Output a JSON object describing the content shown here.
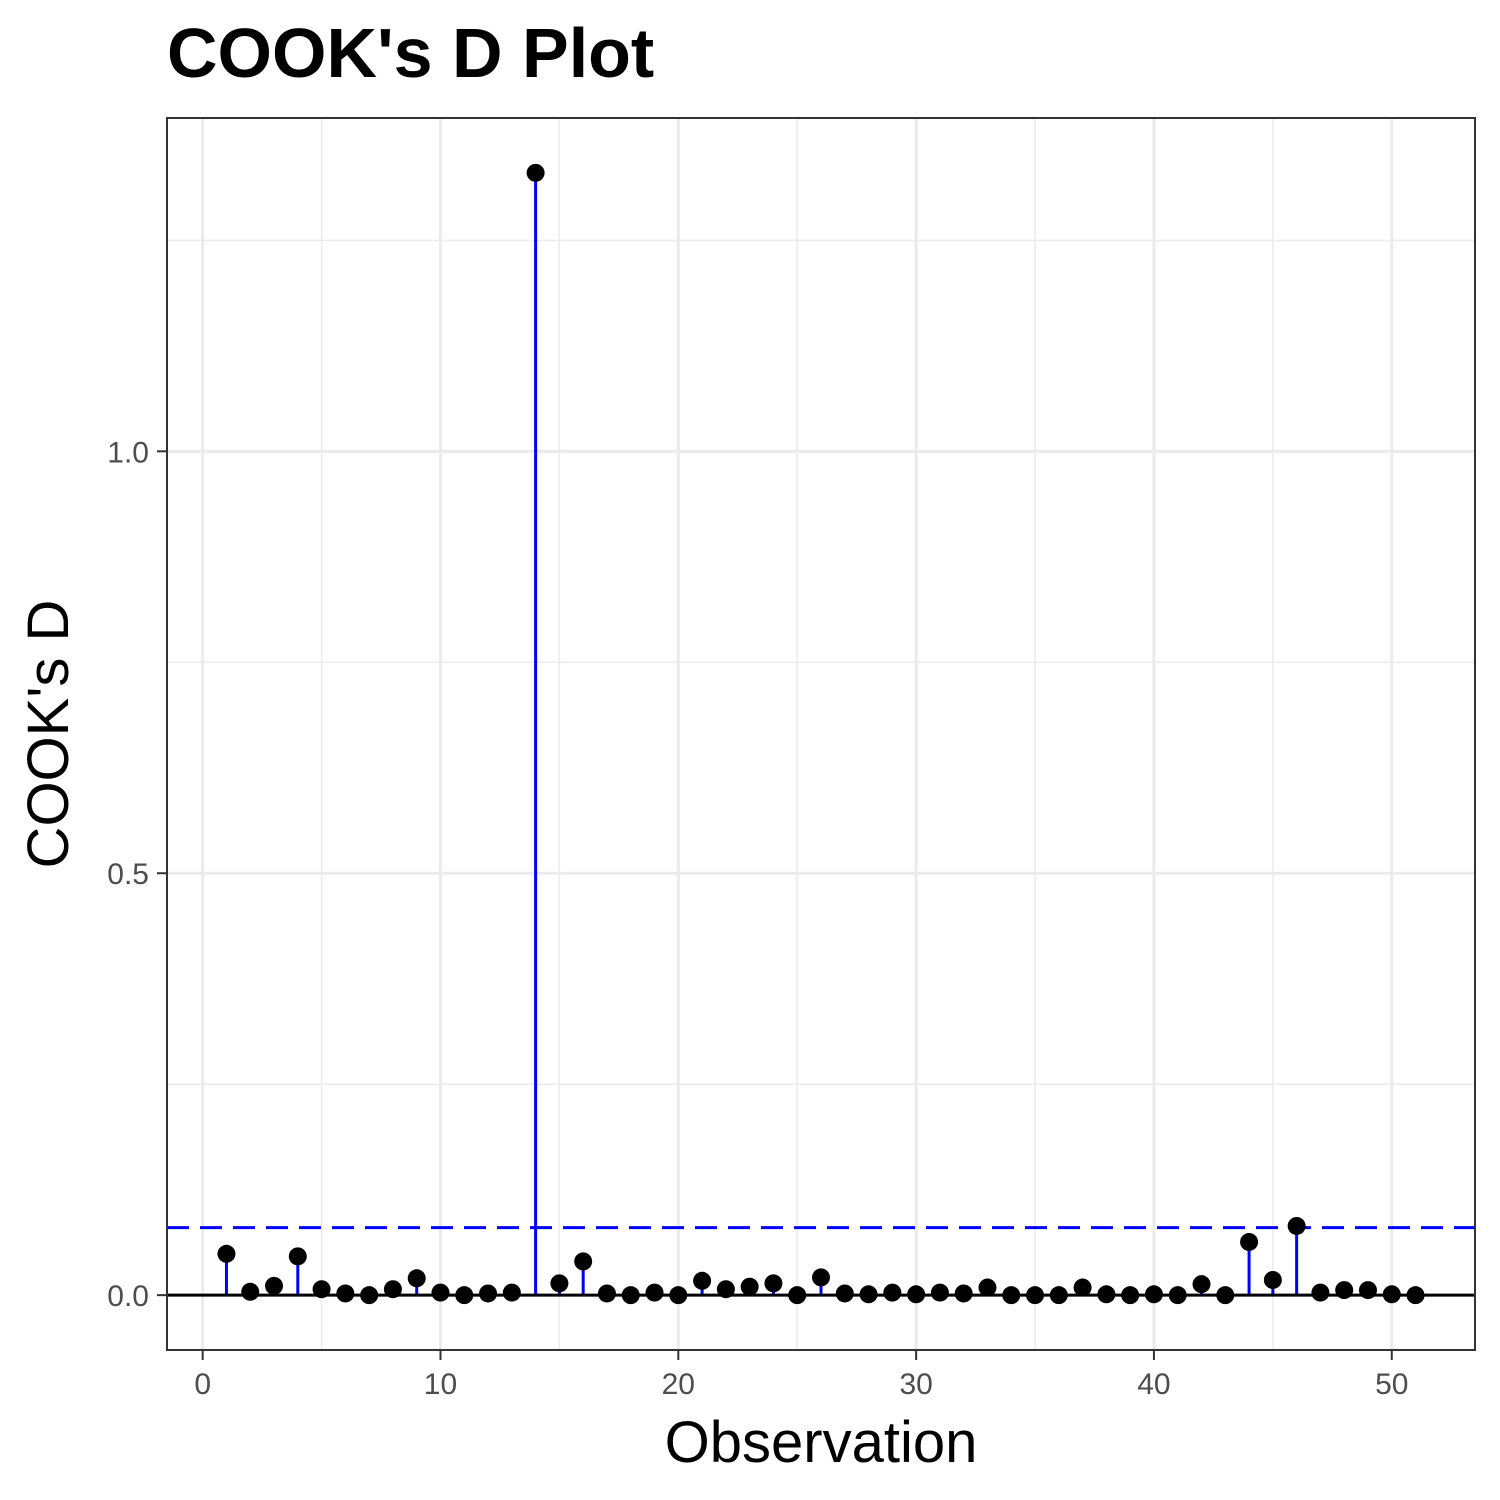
{
  "chart_data": {
    "type": "scatter",
    "title": "COOK's D Plot",
    "xlabel": "Observation",
    "ylabel": "COOK's D",
    "xlim": [
      -1.5,
      53.5
    ],
    "ylim": [
      -0.065,
      1.395
    ],
    "x_ticks": [
      0,
      10,
      20,
      30,
      40,
      50
    ],
    "x_tick_labels": [
      "0",
      "10",
      "20",
      "30",
      "40",
      "50"
    ],
    "y_ticks": [
      0.0,
      0.5,
      1.0
    ],
    "y_tick_labels": [
      "0.0",
      "0.5",
      "1.0"
    ],
    "y_minor_ticks": [
      0.25,
      0.75,
      1.25
    ],
    "threshold": 0.08,
    "grid": true,
    "colors": {
      "stem": "#0000ff",
      "point": "#000000",
      "threshold": "#0000ff",
      "baseline": "#000000",
      "grid": "#ebebeb",
      "panel_border": "#333333"
    },
    "x": [
      1,
      2,
      3,
      4,
      5,
      6,
      7,
      8,
      9,
      10,
      11,
      12,
      13,
      14,
      15,
      16,
      17,
      18,
      19,
      20,
      21,
      22,
      23,
      24,
      25,
      26,
      27,
      28,
      29,
      30,
      31,
      32,
      33,
      34,
      35,
      36,
      37,
      38,
      39,
      40,
      41,
      42,
      43,
      44,
      45,
      46,
      47,
      48,
      49,
      50,
      51
    ],
    "y": [
      0.049,
      0.004,
      0.011,
      0.046,
      0.007,
      0.002,
      0.0,
      0.007,
      0.02,
      0.003,
      0.0,
      0.002,
      0.003,
      1.33,
      0.014,
      0.04,
      0.002,
      0.0,
      0.003,
      0.0,
      0.017,
      0.007,
      0.01,
      0.014,
      0.0,
      0.021,
      0.002,
      0.001,
      0.003,
      0.001,
      0.003,
      0.002,
      0.009,
      0.0,
      0.0,
      0.0,
      0.009,
      0.001,
      0.0,
      0.001,
      0.0,
      0.013,
      0.0,
      0.063,
      0.018,
      0.082,
      0.003,
      0.006,
      0.006,
      0.001,
      0.0
    ]
  }
}
